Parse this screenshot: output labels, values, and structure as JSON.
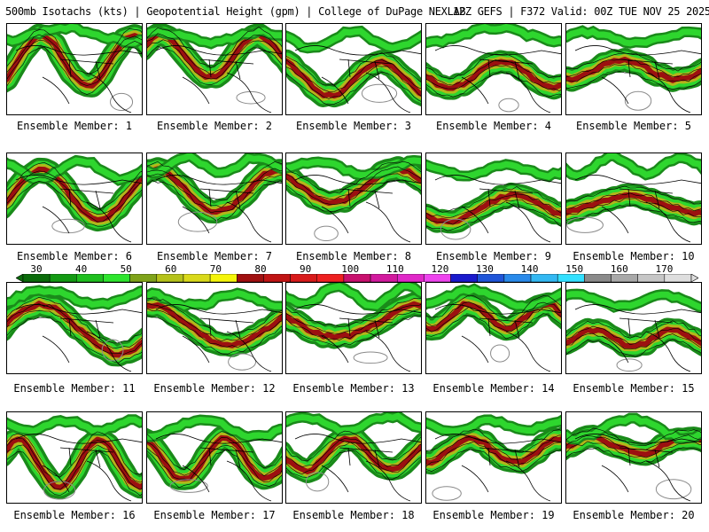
{
  "header": {
    "title_left": "500mb Isotachs (kts) | Geopotential Height (gpm) | College of DuPage NEXLAB",
    "title_right": "12Z GEFS | F372 Valid: 00Z TUE NOV 25 2025"
  },
  "members": [
    {
      "label": "Ensemble Member: 1"
    },
    {
      "label": "Ensemble Member: 2"
    },
    {
      "label": "Ensemble Member: 3"
    },
    {
      "label": "Ensemble Member: 4"
    },
    {
      "label": "Ensemble Member: 5"
    },
    {
      "label": "Ensemble Member: 6"
    },
    {
      "label": "Ensemble Member: 7"
    },
    {
      "label": "Ensemble Member: 8"
    },
    {
      "label": "Ensemble Member: 9"
    },
    {
      "label": "Ensemble Member: 10"
    },
    {
      "label": "Ensemble Member: 11"
    },
    {
      "label": "Ensemble Member: 12"
    },
    {
      "label": "Ensemble Member: 13"
    },
    {
      "label": "Ensemble Member: 14"
    },
    {
      "label": "Ensemble Member: 15"
    },
    {
      "label": "Ensemble Member: 16"
    },
    {
      "label": "Ensemble Member: 17"
    },
    {
      "label": "Ensemble Member: 18"
    },
    {
      "label": "Ensemble Member: 19"
    },
    {
      "label": "Ensemble Member: 20"
    }
  ],
  "colorbar": {
    "ticks": [
      "30",
      "40",
      "50",
      "60",
      "70",
      "80",
      "90",
      "100",
      "110",
      "120",
      "130",
      "140",
      "150",
      "160",
      "170"
    ],
    "colors": [
      "#0a6b0a",
      "#139a13",
      "#1fbf1f",
      "#2ee52e",
      "#7fa31a",
      "#b5c21a",
      "#d9d91a",
      "#f5f50a",
      "#a01010",
      "#c01414",
      "#d81a1a",
      "#ee2020",
      "#c8106e",
      "#d21a9e",
      "#e028c8",
      "#ee44ee",
      "#1a1acc",
      "#1f55d8",
      "#2a8aea",
      "#33b8f2",
      "#33e0ff",
      "#8a8a8a",
      "#a8a8a8",
      "#c6c6c6",
      "#dedede"
    ]
  }
}
